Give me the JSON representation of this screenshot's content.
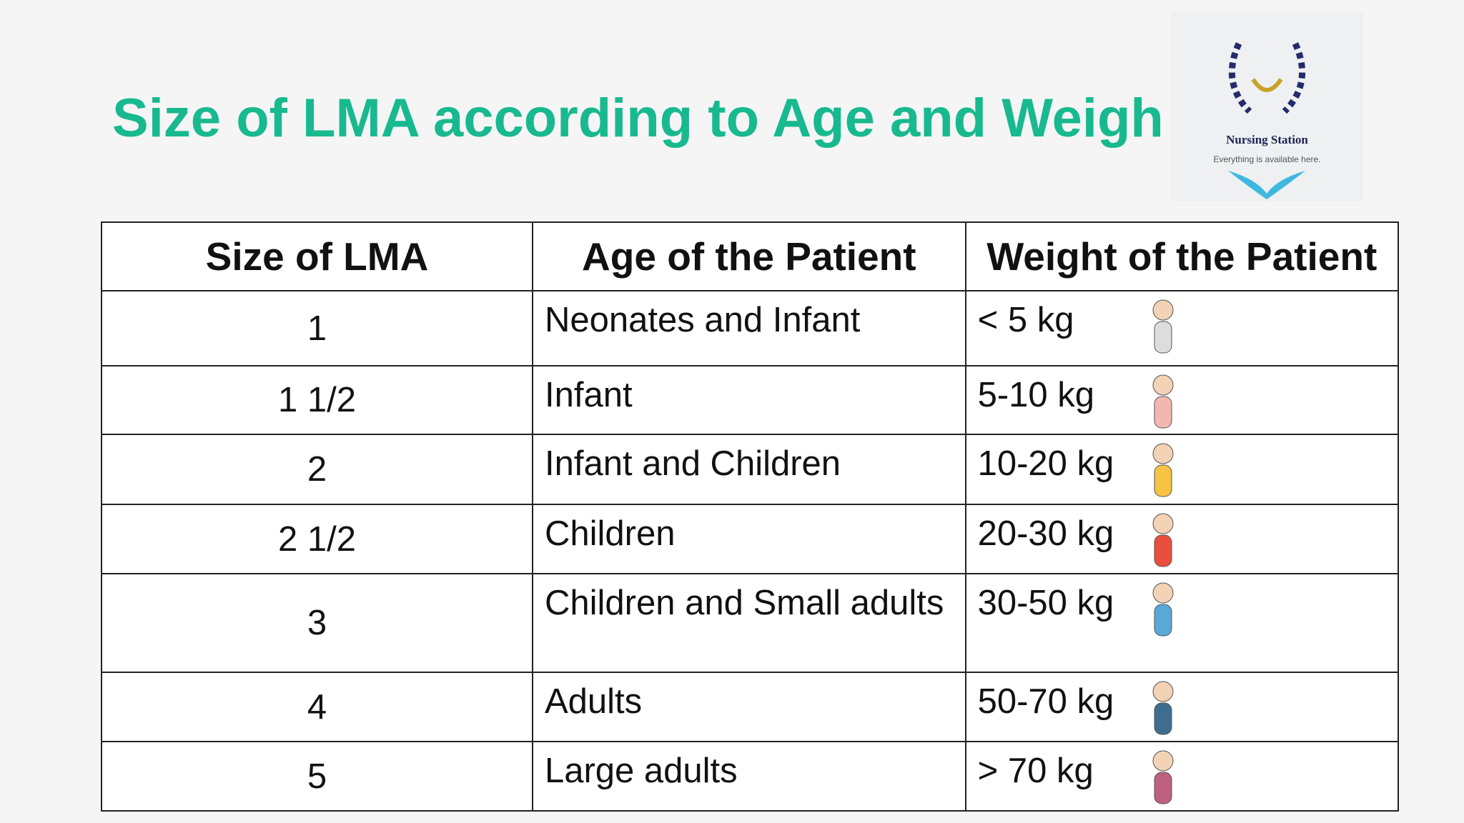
{
  "header": {
    "title": "Size of LMA according to Age and Weigh"
  },
  "logo": {
    "name": "Nursing Station",
    "tagline": "Everything is available here."
  },
  "table": {
    "columns": [
      "Size of LMA",
      "Age of the Patient",
      "Weight of the Patient"
    ],
    "rows": [
      [
        "1",
        "Neonates and Infant",
        "< 5 kg"
      ],
      [
        "1 1/2",
        "Infant",
        "5-10 kg"
      ],
      [
        "2",
        "Infant and Children",
        "10-20 kg"
      ],
      [
        "2 1/2",
        "Children",
        "20-30 kg"
      ],
      [
        "3",
        "Children and Small adults",
        "30-50 kg"
      ],
      [
        "4",
        "Adults",
        "50-70 kg"
      ],
      [
        "5",
        "Large adults",
        "> 70 kg"
      ]
    ]
  }
}
